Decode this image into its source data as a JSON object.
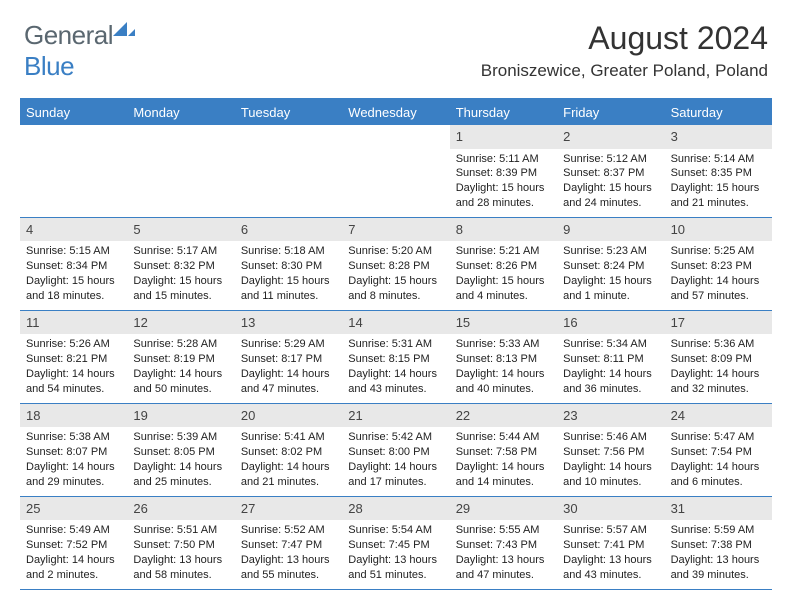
{
  "logo": {
    "text1": "General",
    "text2": "Blue"
  },
  "title": "August 2024",
  "location": "Broniszewice, Greater Poland, Poland",
  "weekdays": [
    "Sunday",
    "Monday",
    "Tuesday",
    "Wednesday",
    "Thursday",
    "Friday",
    "Saturday"
  ],
  "colors": {
    "header_bg": "#3a7fc4",
    "daynum_bg": "#e8e8e8",
    "border": "#3a7fc4"
  },
  "weeks": [
    [
      null,
      null,
      null,
      null,
      {
        "n": "1",
        "sr": "5:11 AM",
        "ss": "8:39 PM",
        "dl1": "Daylight: 15 hours",
        "dl2": "and 28 minutes."
      },
      {
        "n": "2",
        "sr": "5:12 AM",
        "ss": "8:37 PM",
        "dl1": "Daylight: 15 hours",
        "dl2": "and 24 minutes."
      },
      {
        "n": "3",
        "sr": "5:14 AM",
        "ss": "8:35 PM",
        "dl1": "Daylight: 15 hours",
        "dl2": "and 21 minutes."
      }
    ],
    [
      {
        "n": "4",
        "sr": "5:15 AM",
        "ss": "8:34 PM",
        "dl1": "Daylight: 15 hours",
        "dl2": "and 18 minutes."
      },
      {
        "n": "5",
        "sr": "5:17 AM",
        "ss": "8:32 PM",
        "dl1": "Daylight: 15 hours",
        "dl2": "and 15 minutes."
      },
      {
        "n": "6",
        "sr": "5:18 AM",
        "ss": "8:30 PM",
        "dl1": "Daylight: 15 hours",
        "dl2": "and 11 minutes."
      },
      {
        "n": "7",
        "sr": "5:20 AM",
        "ss": "8:28 PM",
        "dl1": "Daylight: 15 hours",
        "dl2": "and 8 minutes."
      },
      {
        "n": "8",
        "sr": "5:21 AM",
        "ss": "8:26 PM",
        "dl1": "Daylight: 15 hours",
        "dl2": "and 4 minutes."
      },
      {
        "n": "9",
        "sr": "5:23 AM",
        "ss": "8:24 PM",
        "dl1": "Daylight: 15 hours",
        "dl2": "and 1 minute."
      },
      {
        "n": "10",
        "sr": "5:25 AM",
        "ss": "8:23 PM",
        "dl1": "Daylight: 14 hours",
        "dl2": "and 57 minutes."
      }
    ],
    [
      {
        "n": "11",
        "sr": "5:26 AM",
        "ss": "8:21 PM",
        "dl1": "Daylight: 14 hours",
        "dl2": "and 54 minutes."
      },
      {
        "n": "12",
        "sr": "5:28 AM",
        "ss": "8:19 PM",
        "dl1": "Daylight: 14 hours",
        "dl2": "and 50 minutes."
      },
      {
        "n": "13",
        "sr": "5:29 AM",
        "ss": "8:17 PM",
        "dl1": "Daylight: 14 hours",
        "dl2": "and 47 minutes."
      },
      {
        "n": "14",
        "sr": "5:31 AM",
        "ss": "8:15 PM",
        "dl1": "Daylight: 14 hours",
        "dl2": "and 43 minutes."
      },
      {
        "n": "15",
        "sr": "5:33 AM",
        "ss": "8:13 PM",
        "dl1": "Daylight: 14 hours",
        "dl2": "and 40 minutes."
      },
      {
        "n": "16",
        "sr": "5:34 AM",
        "ss": "8:11 PM",
        "dl1": "Daylight: 14 hours",
        "dl2": "and 36 minutes."
      },
      {
        "n": "17",
        "sr": "5:36 AM",
        "ss": "8:09 PM",
        "dl1": "Daylight: 14 hours",
        "dl2": "and 32 minutes."
      }
    ],
    [
      {
        "n": "18",
        "sr": "5:38 AM",
        "ss": "8:07 PM",
        "dl1": "Daylight: 14 hours",
        "dl2": "and 29 minutes."
      },
      {
        "n": "19",
        "sr": "5:39 AM",
        "ss": "8:05 PM",
        "dl1": "Daylight: 14 hours",
        "dl2": "and 25 minutes."
      },
      {
        "n": "20",
        "sr": "5:41 AM",
        "ss": "8:02 PM",
        "dl1": "Daylight: 14 hours",
        "dl2": "and 21 minutes."
      },
      {
        "n": "21",
        "sr": "5:42 AM",
        "ss": "8:00 PM",
        "dl1": "Daylight: 14 hours",
        "dl2": "and 17 minutes."
      },
      {
        "n": "22",
        "sr": "5:44 AM",
        "ss": "7:58 PM",
        "dl1": "Daylight: 14 hours",
        "dl2": "and 14 minutes."
      },
      {
        "n": "23",
        "sr": "5:46 AM",
        "ss": "7:56 PM",
        "dl1": "Daylight: 14 hours",
        "dl2": "and 10 minutes."
      },
      {
        "n": "24",
        "sr": "5:47 AM",
        "ss": "7:54 PM",
        "dl1": "Daylight: 14 hours",
        "dl2": "and 6 minutes."
      }
    ],
    [
      {
        "n": "25",
        "sr": "5:49 AM",
        "ss": "7:52 PM",
        "dl1": "Daylight: 14 hours",
        "dl2": "and 2 minutes."
      },
      {
        "n": "26",
        "sr": "5:51 AM",
        "ss": "7:50 PM",
        "dl1": "Daylight: 13 hours",
        "dl2": "and 58 minutes."
      },
      {
        "n": "27",
        "sr": "5:52 AM",
        "ss": "7:47 PM",
        "dl1": "Daylight: 13 hours",
        "dl2": "and 55 minutes."
      },
      {
        "n": "28",
        "sr": "5:54 AM",
        "ss": "7:45 PM",
        "dl1": "Daylight: 13 hours",
        "dl2": "and 51 minutes."
      },
      {
        "n": "29",
        "sr": "5:55 AM",
        "ss": "7:43 PM",
        "dl1": "Daylight: 13 hours",
        "dl2": "and 47 minutes."
      },
      {
        "n": "30",
        "sr": "5:57 AM",
        "ss": "7:41 PM",
        "dl1": "Daylight: 13 hours",
        "dl2": "and 43 minutes."
      },
      {
        "n": "31",
        "sr": "5:59 AM",
        "ss": "7:38 PM",
        "dl1": "Daylight: 13 hours",
        "dl2": "and 39 minutes."
      }
    ]
  ],
  "labels": {
    "sunrise": "Sunrise: ",
    "sunset": "Sunset: "
  }
}
